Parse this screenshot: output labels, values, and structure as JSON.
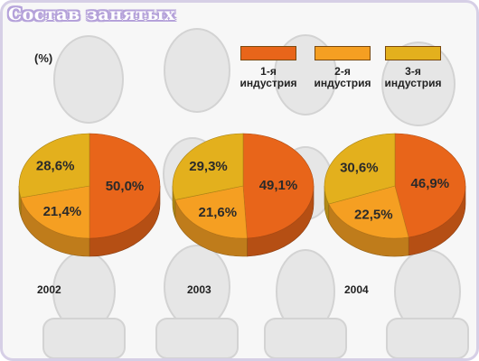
{
  "title": "Состав занятых",
  "unit": "(%)",
  "colors": {
    "industry1": "#e8651a",
    "industry2": "#f59f22",
    "industry3": "#e3b01d"
  },
  "chart_data": {
    "type": "pie",
    "legend_position": "top-right",
    "legend": [
      "1-я\nиндустрия",
      "2-я\nиндустрия",
      "3-я\nиндустрия"
    ],
    "pies": [
      {
        "year": "2002",
        "slices": [
          {
            "value": 50.0,
            "label": "50,0%"
          },
          {
            "value": 21.4,
            "label": "21,4%"
          },
          {
            "value": 28.6,
            "label": "28,6%"
          }
        ]
      },
      {
        "year": "2003",
        "slices": [
          {
            "value": 49.1,
            "label": "49,1%"
          },
          {
            "value": 21.6,
            "label": "21,6%"
          },
          {
            "value": 29.3,
            "label": "29,3%"
          }
        ]
      },
      {
        "year": "2004",
        "slices": [
          {
            "value": 46.9,
            "label": "46,9%"
          },
          {
            "value": 22.5,
            "label": "22,5%"
          },
          {
            "value": 30.6,
            "label": "30,6%"
          }
        ]
      }
    ]
  }
}
